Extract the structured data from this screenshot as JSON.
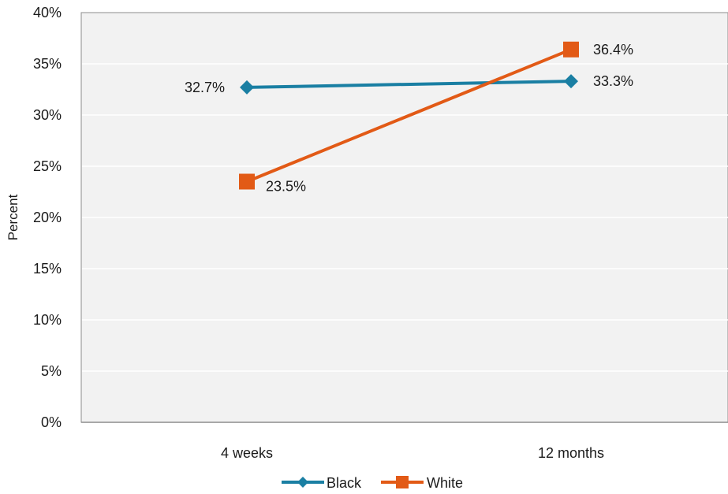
{
  "chart_data": {
    "type": "line",
    "categories": [
      "4 weeks",
      "12 months"
    ],
    "series": [
      {
        "name": "Black",
        "values": [
          32.7,
          33.3
        ],
        "labels": [
          "32.7%",
          "33.3%"
        ],
        "color": "#1A7FA3",
        "marker": "diamond"
      },
      {
        "name": "White",
        "values": [
          23.5,
          36.4
        ],
        "labels": [
          "23.5%",
          "36.4%"
        ],
        "color": "#E25A16",
        "marker": "square"
      }
    ],
    "ylabel": "Percent",
    "xlabel": "",
    "ylim": [
      0,
      40
    ],
    "yticks": [
      0,
      5,
      10,
      15,
      20,
      25,
      30,
      35,
      40
    ],
    "ytick_labels": [
      "0%",
      "5%",
      "10%",
      "15%",
      "20%",
      "25%",
      "30%",
      "35%",
      "40%"
    ],
    "grid": true,
    "plot_background": "#F2F2F2",
    "gridline_color": "#FFFFFF",
    "legend_position": "bottom"
  }
}
